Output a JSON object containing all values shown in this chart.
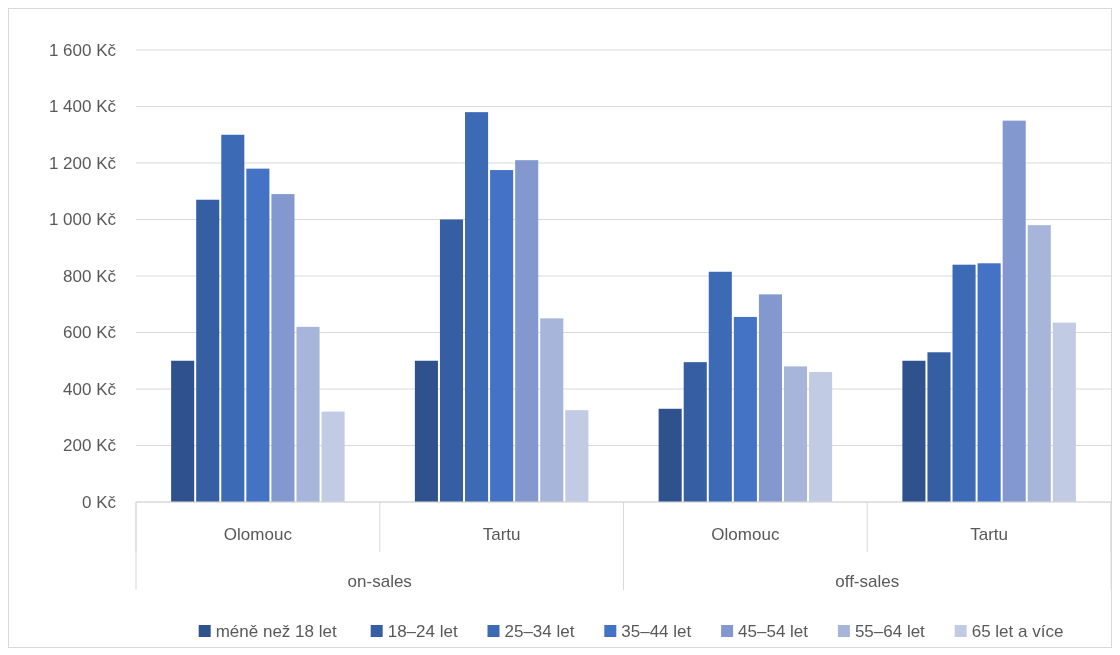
{
  "chart_data": {
    "type": "bar",
    "categories": [
      "Olomouc",
      "Tartu",
      "Olomouc",
      "Tartu"
    ],
    "series": [
      {
        "name": "méně než 18 let",
        "color": "#2f528f",
        "values": [
          500,
          500,
          330,
          500
        ]
      },
      {
        "name": "18–24 let",
        "color": "#365fa3",
        "values": [
          1070,
          1000,
          495,
          530
        ]
      },
      {
        "name": "25–34 let",
        "color": "#3d6ab5",
        "values": [
          1300,
          1380,
          815,
          840
        ]
      },
      {
        "name": "35–44 let",
        "color": "#4472c4",
        "values": [
          1180,
          1175,
          655,
          845
        ]
      },
      {
        "name": "45–54 let",
        "color": "#8298cf",
        "values": [
          1090,
          1210,
          735,
          1350
        ]
      },
      {
        "name": "55–64 let",
        "color": "#a7b5da",
        "values": [
          620,
          650,
          480,
          980
        ]
      },
      {
        "name": "65 let a více",
        "color": "#c1cbe4",
        "values": [
          320,
          325,
          460,
          635
        ]
      }
    ],
    "annotations": [
      "on-sales",
      "off-sales"
    ],
    "ylim": [
      0,
      1600
    ],
    "yticks": [
      {
        "value": 0,
        "label": "0 Kč"
      },
      {
        "value": 200,
        "label": "200 Kč"
      },
      {
        "value": 400,
        "label": "400 Kč"
      },
      {
        "value": 600,
        "label": "600 Kč"
      },
      {
        "value": 800,
        "label": "800 Kč"
      },
      {
        "value": 1000,
        "label": "1 000 Kč"
      },
      {
        "value": 1200,
        "label": "1 200 Kč"
      },
      {
        "value": 1400,
        "label": "1 400 Kč"
      },
      {
        "value": 1600,
        "label": "1 600 Kč"
      }
    ],
    "grid": "y",
    "legend": "bottom"
  }
}
